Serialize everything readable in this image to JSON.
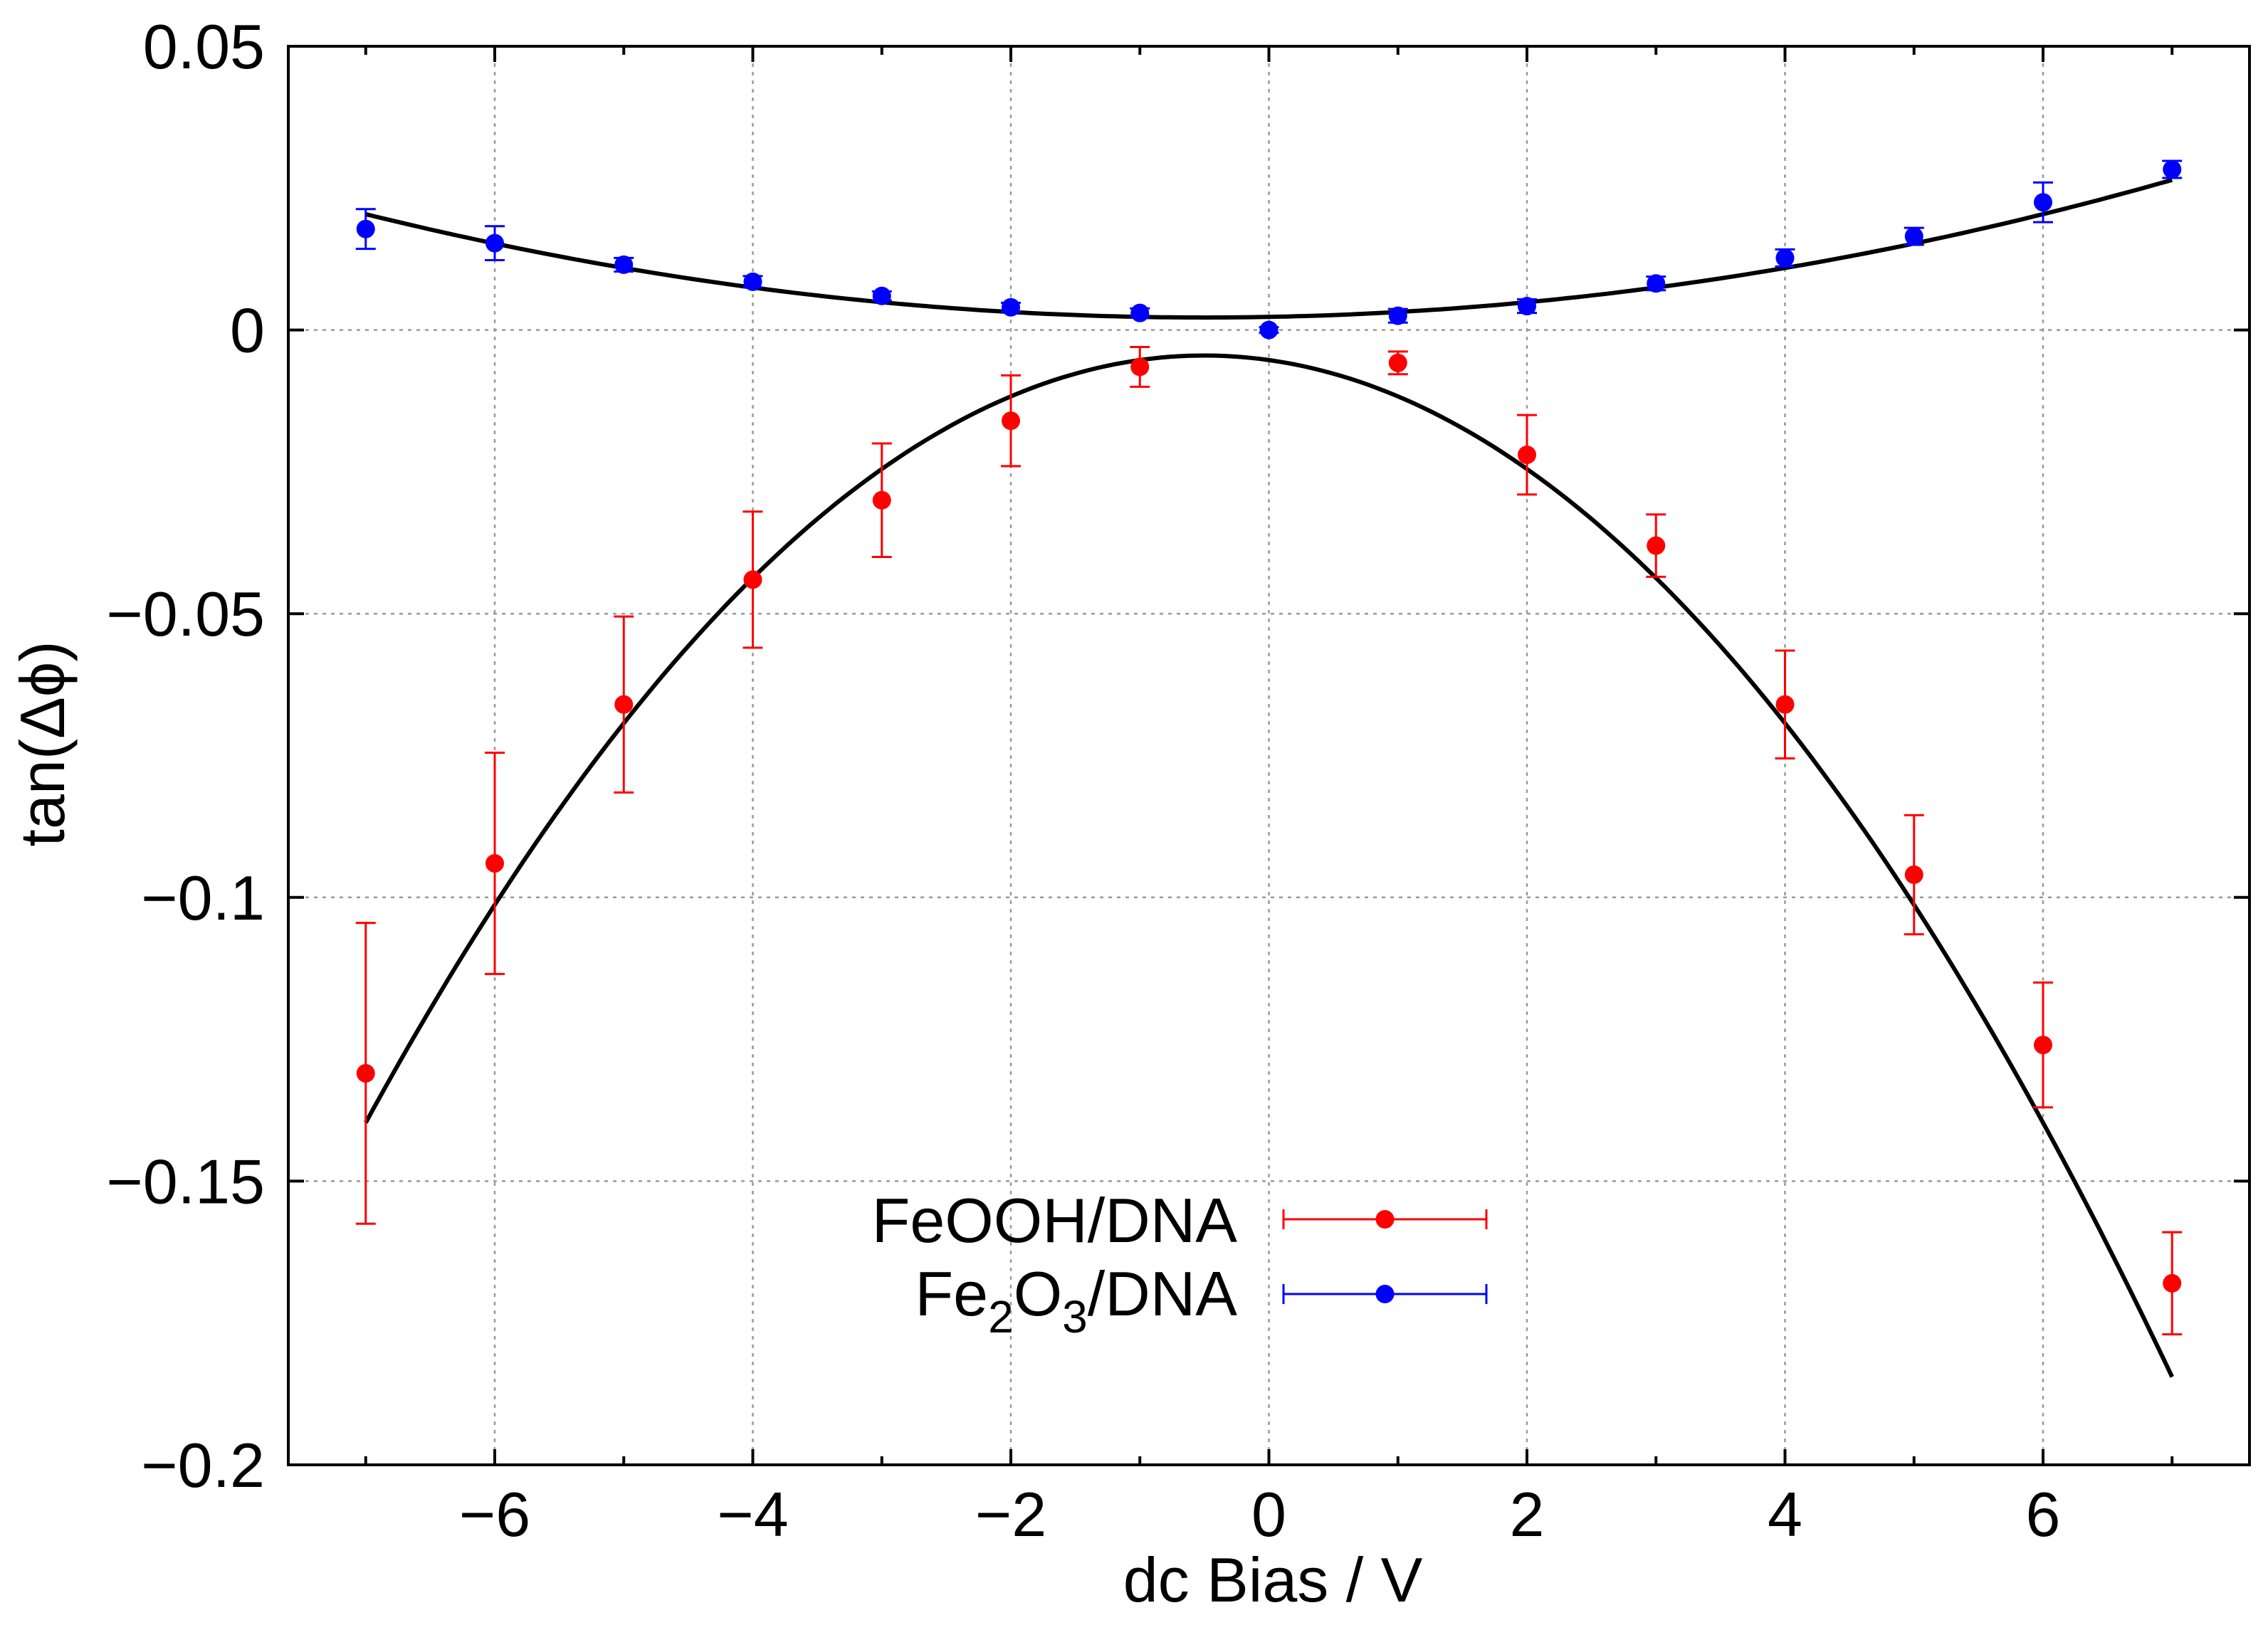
{
  "chart_data": {
    "type": "scatter",
    "title": "",
    "xlabel": "dc Bias / V",
    "ylabel": "tan(Δϕ)",
    "xlim": [
      -7.6,
      7.6
    ],
    "ylim": [
      -0.2,
      0.05
    ],
    "grid": true,
    "legend_position": "bottom-center",
    "x_ticks": [
      -6,
      -4,
      -2,
      0,
      2,
      4,
      6
    ],
    "x_tick_labels": [
      "−6",
      "−4",
      "−2",
      "0",
      "2",
      "4",
      "6"
    ],
    "y_ticks": [
      0.05,
      0,
      -0.05,
      -0.1,
      -0.15,
      -0.2
    ],
    "y_tick_labels": [
      "0.05",
      "0",
      "−0.05",
      "−0.1",
      "−0.15",
      "−0.2"
    ],
    "series": [
      {
        "name": "FeOOH/DNA",
        "legend_label": "FeOOH/DNA",
        "color": "#ff0000",
        "x": [
          -7,
          -6,
          -5,
          -4,
          -3,
          -2,
          -1,
          0,
          1,
          2,
          3,
          4,
          5,
          6,
          7
        ],
        "y": [
          -0.131,
          -0.094,
          -0.066,
          -0.044,
          -0.03,
          -0.016,
          -0.0065,
          null,
          -0.0058,
          -0.022,
          -0.038,
          -0.066,
          -0.096,
          -0.126,
          -0.168
        ],
        "yerr": [
          0.0265,
          0.0195,
          0.0155,
          0.012,
          0.01,
          0.008,
          0.0035,
          null,
          0.002,
          0.007,
          0.0055,
          0.0095,
          0.0105,
          0.011,
          0.009
        ],
        "fit": {
          "form": "quadratic",
          "a": -0.0032,
          "x0": -0.5,
          "c": -0.0045,
          "range": [
            -7,
            7
          ]
        }
      },
      {
        "name": "Fe2O3/DNA",
        "legend_label": "Fe",
        "legend_sub1": "2",
        "legend_mid": "O",
        "legend_sub2": "3",
        "legend_tail": "/DNA",
        "color": "#0000ff",
        "x": [
          -7,
          -6,
          -5,
          -4,
          -3,
          -2,
          -1,
          0,
          1,
          2,
          3,
          4,
          5,
          6,
          7
        ],
        "y": [
          0.0178,
          0.0153,
          0.0115,
          0.0085,
          0.006,
          0.004,
          0.003,
          0.0,
          0.0025,
          0.0042,
          0.0082,
          0.0127,
          0.0165,
          0.0225,
          0.0283
        ],
        "yerr": [
          0.0035,
          0.003,
          0.0012,
          0.001,
          0.0008,
          0.0008,
          0.0008,
          0.0005,
          0.0012,
          0.0012,
          0.0012,
          0.0015,
          0.0015,
          0.0035,
          0.0015
        ],
        "fit": {
          "form": "quadratic",
          "a": 0.000431,
          "x0": -0.5,
          "c": 0.0022,
          "range": [
            -7,
            7
          ]
        }
      }
    ]
  }
}
